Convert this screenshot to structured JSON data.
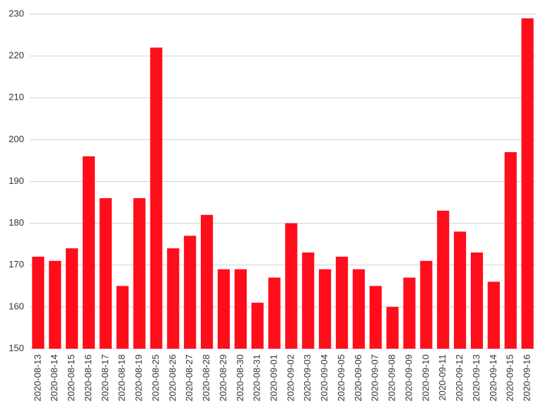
{
  "chart_data": {
    "type": "bar",
    "categories": [
      "2020-08-13",
      "2020-08-14",
      "2020-08-15",
      "2020-08-16",
      "2020-08-17",
      "2020-08-18",
      "2020-08-19",
      "2020-08-25",
      "2020-08-26",
      "2020-08-27",
      "2020-08-28",
      "2020-08-29",
      "2020-08-30",
      "2020-08-31",
      "2020-09-01",
      "2020-09-02",
      "2020-09-03",
      "2020-09-04",
      "2020-09-05",
      "2020-09-06",
      "2020-09-07",
      "2020-09-08",
      "2020-09-09",
      "2020-09-10",
      "2020-09-11",
      "2020-09-12",
      "2020-09-13",
      "2020-09-14",
      "2020-09-15",
      "2020-09-16"
    ],
    "values": [
      172,
      171,
      174,
      196,
      186,
      165,
      186,
      222,
      174,
      177,
      182,
      169,
      169,
      161,
      167,
      180,
      173,
      169,
      172,
      169,
      165,
      160,
      167,
      171,
      183,
      178,
      173,
      166,
      197,
      229
    ],
    "color": "#ff0d1a",
    "ylim": [
      150,
      230
    ],
    "yticks": [
      150,
      160,
      170,
      180,
      190,
      200,
      210,
      220,
      230
    ],
    "grid": true
  }
}
